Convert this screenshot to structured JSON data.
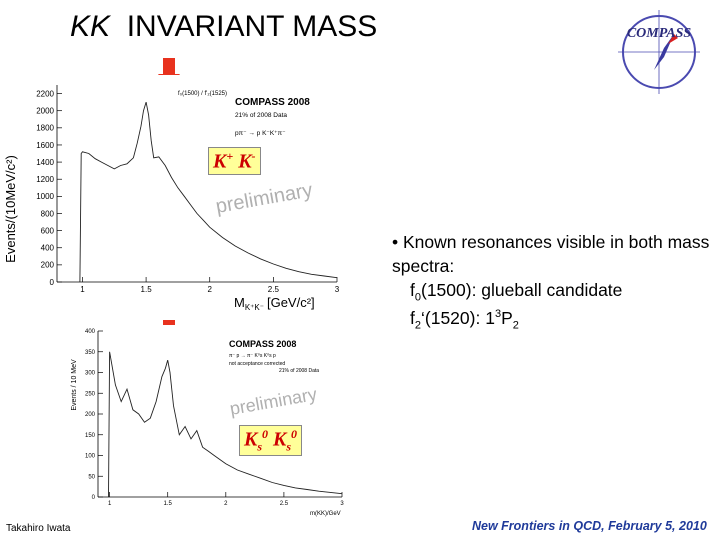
{
  "slide": {
    "title_prefix": "KK",
    "title_rest": "INVARIANT MASS",
    "logo_text": "COMPASS",
    "kk_label_sup": "+",
    "kk_label_sup2": "-",
    "ks_label_sub": "s",
    "ks_label_sup": "0",
    "bullet_intro": "• Known resonances visible in both mass spectra:",
    "bullet_line2": "f",
    "bullet_line2_sub": "0",
    "bullet_line2_rest": "(1500): glueball candidate",
    "bullet_line3": "f",
    "bullet_line3_sub": "2",
    "bullet_line3_mid": "‘(1520): 1",
    "bullet_line3_sup": "3",
    "bullet_line3_end": "P",
    "bullet_line3_sub2": "2",
    "footer_left": "Takahiro Iwata",
    "footer_right": "New Frontiers in QCD, February 5, 2010",
    "colors": {
      "arrow": "#e8321e",
      "title": "#000000",
      "watermark": "#b0b0b0",
      "footer": "#1f3a9a",
      "kbox_bg": "#ffff99",
      "kbox_text": "#cc0000"
    }
  },
  "chart_data": [
    {
      "type": "line",
      "title": "COMPASS 2008",
      "subtitle": "21% of 2008 Data",
      "reaction": "pπ⁻ → p K⁻K⁺π⁻",
      "peak_label": "f₀(1500) / f'₂(1525)",
      "watermark": "preliminary",
      "xlabel": "M",
      "xlabel_sub": "K⁺K⁻",
      "xlabel_unit": "[GeV/c²]",
      "ylabel": "Events/(10MeV/c²)",
      "xlim": [
        0.8,
        3.0
      ],
      "ylim": [
        0,
        2300
      ],
      "x_ticks": [
        1,
        1.5,
        2,
        2.5,
        3
      ],
      "x_tick_labels": [
        "1",
        "1.5",
        "2",
        "2.5",
        "3"
      ],
      "y_ticks": [
        0,
        200,
        400,
        600,
        800,
        1000,
        1200,
        1400,
        1600,
        1800,
        2000,
        2200
      ],
      "y_tick_labels": [
        "0",
        "200",
        "400",
        "600",
        "800",
        "1000",
        "1200",
        "1400",
        "1600",
        "1800",
        "2000",
        "2200"
      ],
      "series": [
        {
          "x": [
            0.98,
            0.99,
            1.0,
            1.05,
            1.1,
            1.15,
            1.2,
            1.25,
            1.3,
            1.35,
            1.4,
            1.43,
            1.46,
            1.48,
            1.5,
            1.52,
            1.54,
            1.56,
            1.6,
            1.65,
            1.7,
            1.75,
            1.8,
            1.85,
            1.9,
            1.95,
            2.0,
            2.1,
            2.2,
            2.3,
            2.4,
            2.5,
            2.6,
            2.7,
            2.8,
            2.9,
            3.0
          ],
          "y": [
            0,
            1500,
            1520,
            1500,
            1440,
            1400,
            1360,
            1320,
            1360,
            1380,
            1450,
            1620,
            1820,
            2000,
            2100,
            1950,
            1650,
            1450,
            1460,
            1360,
            1220,
            1100,
            1000,
            900,
            800,
            720,
            640,
            520,
            420,
            340,
            270,
            210,
            160,
            120,
            90,
            70,
            50
          ]
        }
      ]
    },
    {
      "type": "line",
      "title": "COMPASS 2008",
      "subtitle": "21% of 2008 Data",
      "reaction": "π⁻ p → π⁻ K⁰s K⁰s p",
      "note": "not acceptance corrected",
      "watermark": "preliminary",
      "xlabel": "m(KK)/GeV",
      "ylabel": "Events / 10 MeV",
      "xlim": [
        0.9,
        3.0
      ],
      "ylim": [
        0,
        400
      ],
      "x_ticks": [
        1,
        1.5,
        2,
        2.5,
        3
      ],
      "x_tick_labels": [
        "1",
        "1.5",
        "2",
        "2.5",
        "3"
      ],
      "y_ticks": [
        0,
        50,
        100,
        150,
        200,
        250,
        300,
        350,
        400
      ],
      "y_tick_labels": [
        "0",
        "50",
        "100",
        "150",
        "200",
        "250",
        "300",
        "350",
        "400"
      ],
      "series": [
        {
          "x": [
            0.99,
            1.0,
            1.05,
            1.1,
            1.15,
            1.2,
            1.25,
            1.3,
            1.35,
            1.4,
            1.45,
            1.48,
            1.5,
            1.52,
            1.55,
            1.6,
            1.65,
            1.7,
            1.75,
            1.8,
            1.85,
            1.9,
            2.0,
            2.1,
            2.2,
            2.3,
            2.4,
            2.5,
            2.6,
            2.7,
            2.8,
            2.9,
            3.0
          ],
          "y": [
            0,
            350,
            270,
            230,
            260,
            210,
            200,
            180,
            190,
            230,
            290,
            310,
            330,
            300,
            220,
            150,
            170,
            140,
            160,
            120,
            110,
            100,
            80,
            65,
            55,
            45,
            35,
            28,
            22,
            18,
            14,
            11,
            8
          ]
        }
      ]
    }
  ]
}
